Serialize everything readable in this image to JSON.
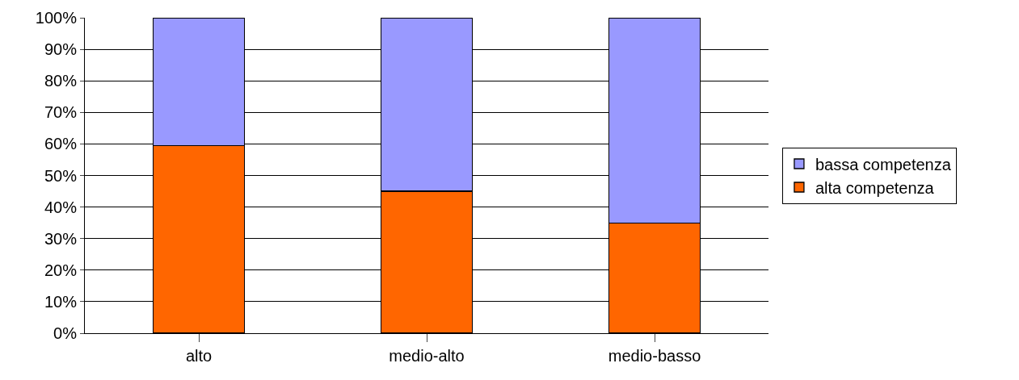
{
  "chart_data": {
    "type": "bar",
    "stacked": true,
    "categories": [
      "alto",
      "medio-alto",
      "medio-basso"
    ],
    "series": [
      {
        "name": "alta competenza",
        "color": "#ff6600",
        "values": [
          59.5,
          45,
          35
        ]
      },
      {
        "name": "bassa competenza",
        "color": "#9999ff",
        "values": [
          40.5,
          55,
          65
        ]
      }
    ],
    "ylim": [
      0,
      100
    ],
    "yticks": [
      {
        "value": 0,
        "label": "0%"
      },
      {
        "value": 10,
        "label": "10%"
      },
      {
        "value": 20,
        "label": "20%"
      },
      {
        "value": 30,
        "label": "30%"
      },
      {
        "value": 40,
        "label": "40%"
      },
      {
        "value": 50,
        "label": "50%"
      },
      {
        "value": 60,
        "label": "60%"
      },
      {
        "value": 70,
        "label": "70%"
      },
      {
        "value": 80,
        "label": "80%"
      },
      {
        "value": 90,
        "label": "90%"
      },
      {
        "value": 100,
        "label": "100%"
      }
    ],
    "grid": "y",
    "legend": "right"
  }
}
